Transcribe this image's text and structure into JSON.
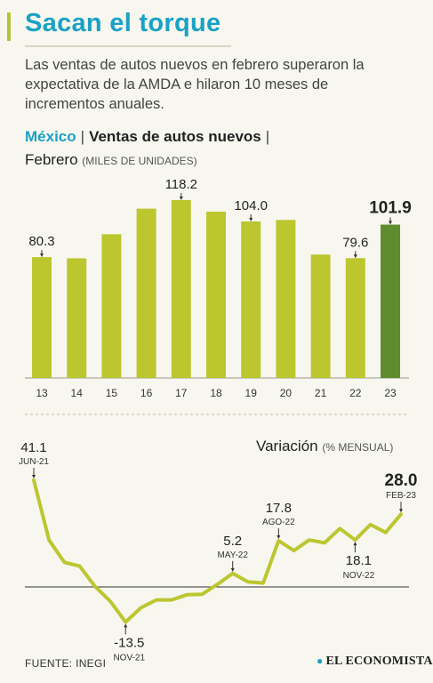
{
  "header": {
    "title": "Sacan el torque",
    "subtitle": "Las ventas de autos nuevos en febrero superaron la expectativa de la AMDA e hilaron 10 meses de incrementos anuales.",
    "country": "México",
    "separator": "|",
    "chart_name": "Ventas de autos nuevos",
    "period": "Febrero",
    "unit": "(MILES DE UNIDADES)"
  },
  "chart_data": [
    {
      "type": "bar",
      "categories": [
        "13",
        "14",
        "15",
        "16",
        "17",
        "18",
        "19",
        "20",
        "21",
        "22",
        "23"
      ],
      "values": [
        80.3,
        79.5,
        95.5,
        112.5,
        118.2,
        110.5,
        104.0,
        105.0,
        82.0,
        79.6,
        101.9
      ],
      "labeled": [
        0,
        4,
        6,
        9,
        10
      ],
      "data_labels": [
        "80.3",
        "",
        "",
        "",
        "118.2",
        "",
        "104.0",
        "",
        "",
        "79.6",
        "101.9"
      ],
      "highlight_index": 10,
      "ylim": [
        0,
        130
      ],
      "colors": {
        "bar": "#bcc62f",
        "highlight": "#5e8c2f"
      }
    },
    {
      "type": "line",
      "title": "Variación",
      "unit": "(% MENSUAL)",
      "values": [
        41.1,
        18.0,
        9.5,
        8.0,
        0.2,
        -5.5,
        -13.5,
        -8.0,
        -5.0,
        -5.0,
        -3.0,
        -2.8,
        1.0,
        5.2,
        2.0,
        1.5,
        17.8,
        14.0,
        18.1,
        17.0,
        22.5,
        18.1,
        24.0,
        21.0,
        28.0
      ],
      "zero_line": true,
      "ylim": [
        -20,
        45
      ],
      "annotations": [
        {
          "index": 0,
          "value": "41.1",
          "date": "JUN-21",
          "pos": "above"
        },
        {
          "index": 6,
          "value": "-13.5",
          "date": "NOV-21",
          "pos": "below"
        },
        {
          "index": 13,
          "value": "5.2",
          "date": "MAY-22",
          "pos": "above"
        },
        {
          "index": 16,
          "value": "17.8",
          "date": "AGO-22",
          "pos": "above"
        },
        {
          "index": 21,
          "value": "18.1",
          "date": "NOV-22",
          "pos": "below"
        },
        {
          "index": 24,
          "value": "28.0",
          "date": "FEB-23",
          "pos": "above",
          "emphasis": true
        }
      ],
      "colors": {
        "line": "#bcc62f",
        "zero": "#333333"
      }
    }
  ],
  "footer": {
    "source": "FUENTE: INEGI",
    "logo": "EL ECONOMISTA"
  }
}
